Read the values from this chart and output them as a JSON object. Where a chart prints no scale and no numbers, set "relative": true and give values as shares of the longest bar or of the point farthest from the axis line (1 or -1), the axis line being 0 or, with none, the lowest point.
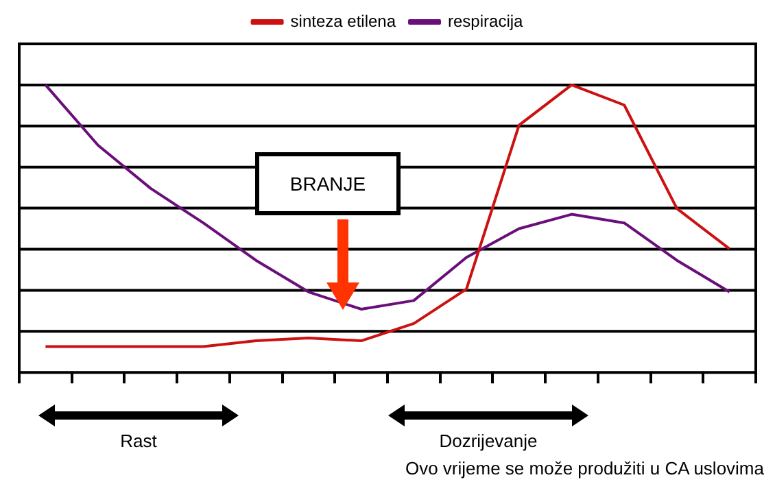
{
  "chart_data": {
    "type": "line",
    "relative": true,
    "categories": [
      null,
      null,
      null,
      null,
      null,
      null,
      null,
      null,
      null,
      null,
      null,
      null,
      null,
      null
    ],
    "series": [
      {
        "name": "sinteza etilena",
        "color": "#cc1111",
        "values": [
          0.09,
          0.09,
          0.09,
          0.09,
          0.11,
          0.12,
          0.11,
          0.17,
          0.29,
          0.86,
          1.0,
          0.93,
          0.57,
          0.43
        ]
      },
      {
        "name": "respiracija",
        "color": "#6a0f7a",
        "values": [
          1.0,
          0.79,
          0.64,
          0.52,
          0.39,
          0.28,
          0.22,
          0.25,
          0.4,
          0.5,
          0.55,
          0.52,
          0.39,
          0.28
        ]
      }
    ],
    "annotations": [
      "BRANJE",
      "Rast",
      "Dozrijevanje",
      "Ovo vrijeme se može produžiti u CA uslovima"
    ],
    "grid": "y",
    "legend": "top",
    "marker": "none",
    "line_style": "solid"
  }
}
